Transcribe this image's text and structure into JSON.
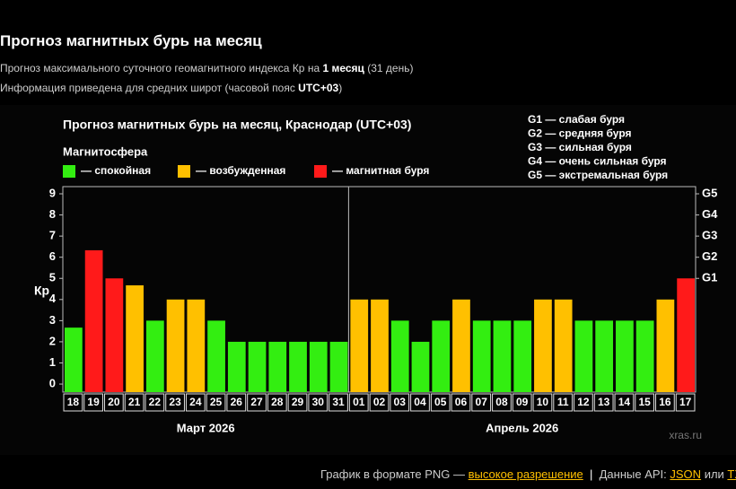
{
  "header": {
    "title": "Прогноз магнитных бурь на месяц",
    "line1": {
      "pre": "Прогноз максимального суточного геомагнитного индекса Кр на ",
      "bold": "1 месяц",
      "post": "(31 день)"
    },
    "line2": {
      "pre": "Информация приведена для средних широт (часовой пояс ",
      "bold": "UTC+03",
      "post": ")"
    }
  },
  "chart_data": {
    "type": "bar",
    "title": "Прогноз магнитных бурь на месяц, Краснодар (UTC+03)",
    "legend_title": "Магнитосфера",
    "legend": [
      {
        "label": "— спокойная",
        "color": "#33ee11"
      },
      {
        "label": "— возбужденная",
        "color": "#ffc000"
      },
      {
        "label": "— магнитная буря",
        "color": "#ff1a1a"
      }
    ],
    "g_scale": [
      "G1 — слабая буря",
      "G2 — средняя буря",
      "G3 — сильная буря",
      "G4 — очень сильная буря",
      "G5 — экстремальная буря"
    ],
    "y_label": "Кр",
    "ylim": [
      -0.38,
      9.34
    ],
    "yticks": [
      0,
      1,
      2,
      3,
      4,
      5,
      6,
      7,
      8,
      9
    ],
    "y2ticks": [
      {
        "value": 5,
        "label": "G1"
      },
      {
        "value": 6,
        "label": "G2"
      },
      {
        "value": 7,
        "label": "G3"
      },
      {
        "value": 8,
        "label": "G4"
      },
      {
        "value": 9,
        "label": "G5"
      }
    ],
    "groups": [
      {
        "label": "Март 2026",
        "categories": [
          "18",
          "19",
          "20",
          "21",
          "22",
          "23",
          "24",
          "25",
          "26",
          "27",
          "28",
          "29",
          "30",
          "31"
        ],
        "values": [
          2.67,
          6.33,
          5,
          4.67,
          3,
          4,
          4,
          3,
          2,
          2,
          2,
          2,
          2,
          2
        ],
        "colors": [
          "#33ee11",
          "#ff1a1a",
          "#ff1a1a",
          "#ffc000",
          "#33ee11",
          "#ffc000",
          "#ffc000",
          "#33ee11",
          "#33ee11",
          "#33ee11",
          "#33ee11",
          "#33ee11",
          "#33ee11",
          "#33ee11"
        ]
      },
      {
        "label": "Апрель 2026",
        "categories": [
          "01",
          "02",
          "03",
          "04",
          "05",
          "06",
          "07",
          "08",
          "09",
          "10",
          "11",
          "12",
          "13",
          "14",
          "15",
          "16",
          "17"
        ],
        "values": [
          4,
          4,
          3,
          2,
          3,
          4,
          3,
          3,
          3,
          4,
          4,
          3,
          3,
          3,
          3,
          4,
          5
        ],
        "colors": [
          "#ffc000",
          "#ffc000",
          "#33ee11",
          "#33ee11",
          "#33ee11",
          "#ffc000",
          "#33ee11",
          "#33ee11",
          "#33ee11",
          "#ffc000",
          "#ffc000",
          "#33ee11",
          "#33ee11",
          "#33ee11",
          "#33ee11",
          "#ffc000",
          "#ff1a1a"
        ]
      }
    ],
    "watermark": "xras.ru"
  },
  "footer": {
    "pre": "График в формате PNG —",
    "link": "высокое разрешение",
    "sep": "|",
    "api": "Данные API:",
    "json": "JSON",
    "or": "или",
    "txt": "TXT"
  }
}
